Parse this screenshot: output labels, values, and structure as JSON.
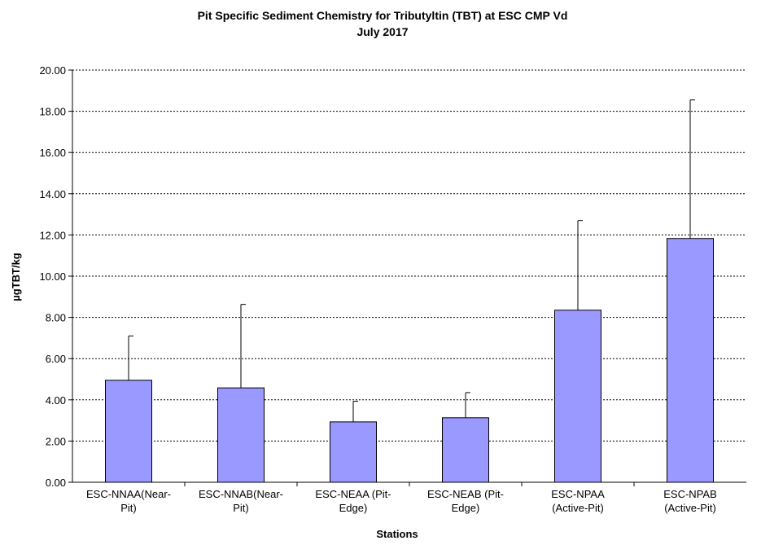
{
  "chart_data": {
    "type": "bar",
    "title_lines": [
      "Pit Specific Sediment Chemistry for Tributyltin (TBT) at  ESC CMP Vd",
      "July 2017"
    ],
    "xlabel": "Stations",
    "ylabel": "µgTBT/kg",
    "categories": [
      [
        "ESC-NNAA(Near-",
        "Pit)"
      ],
      [
        "ESC-NNAB(Near-",
        "Pit)"
      ],
      [
        "ESC-NEAA (Pit-",
        "Edge)"
      ],
      [
        "ESC-NEAB (Pit-",
        "Edge)"
      ],
      [
        "ESC-NPAA",
        "(Active-Pit)"
      ],
      [
        "ESC-NPAB",
        "(Active-Pit)"
      ]
    ],
    "values": [
      4.95,
      4.58,
      2.93,
      3.13,
      8.35,
      11.83
    ],
    "error_upper": [
      2.15,
      4.05,
      1.0,
      1.22,
      4.35,
      6.72
    ],
    "ylim": [
      0,
      20
    ],
    "yticks": [
      "0.00",
      "2.00",
      "4.00",
      "6.00",
      "8.00",
      "10.00",
      "12.00",
      "14.00",
      "16.00",
      "18.00",
      "20.00"
    ],
    "ytick_step": 2,
    "grid": true,
    "bar_color": "#9999ff",
    "bar_edge_color": "#000000"
  }
}
